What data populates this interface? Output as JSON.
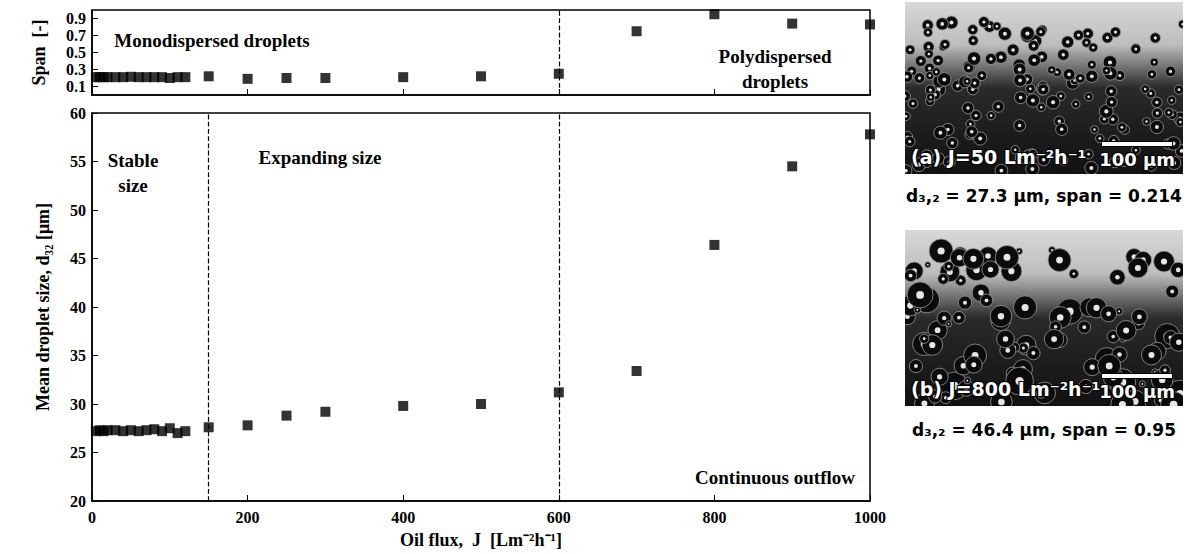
{
  "chart_data": [
    {
      "type": "scatter",
      "y_label": "Span  [-]",
      "x": [
        5,
        10,
        15,
        20,
        30,
        40,
        50,
        60,
        70,
        80,
        90,
        100,
        110,
        120,
        150,
        200,
        250,
        300,
        400,
        500,
        600,
        700,
        800,
        900,
        1000
      ],
      "values": [
        0.21,
        0.21,
        0.21,
        0.21,
        0.21,
        0.21,
        0.214,
        0.21,
        0.21,
        0.21,
        0.21,
        0.2,
        0.21,
        0.21,
        0.22,
        0.19,
        0.2,
        0.2,
        0.21,
        0.22,
        0.25,
        0.75,
        0.95,
        0.84,
        0.83
      ],
      "xlim": [
        0,
        1000
      ],
      "xticks": [
        0,
        200,
        400,
        600,
        800,
        1000
      ],
      "ylim": [
        0,
        1
      ],
      "yticks": [
        0.1,
        0.3,
        0.5,
        0.7,
        0.9
      ],
      "tick_labels": "y",
      "marker": "square",
      "color": "#000000",
      "grid": false,
      "vlines": [
        600
      ],
      "annotations": [
        "Monodispersed droplets",
        "Polydispersed droplets"
      ]
    },
    {
      "type": "scatter",
      "x_label": "Oil flux,  J  [Lm⁻²h⁻¹]",
      "y_label": "Mean droplet size, d₃₂ [μm]",
      "x": [
        5,
        10,
        15,
        20,
        30,
        40,
        50,
        60,
        70,
        80,
        90,
        100,
        110,
        120,
        150,
        200,
        250,
        300,
        400,
        500,
        600,
        700,
        800,
        900,
        1000
      ],
      "values": [
        27.2,
        27.3,
        27.2,
        27.3,
        27.3,
        27.2,
        27.3,
        27.2,
        27.3,
        27.4,
        27.2,
        27.5,
        27.0,
        27.2,
        27.6,
        27.8,
        28.8,
        29.2,
        29.8,
        30.0,
        31.2,
        33.4,
        46.4,
        54.5,
        57.8
      ],
      "xlim": [
        0,
        1000
      ],
      "xticks": [
        0,
        200,
        400,
        600,
        800,
        1000
      ],
      "ylim": [
        20,
        60
      ],
      "yticks": [
        20,
        25,
        30,
        35,
        40,
        45,
        50,
        55,
        60
      ],
      "marker": "square",
      "color": "#000000",
      "grid": false,
      "vlines": [
        150,
        600
      ],
      "annotations": [
        "Stable size",
        "Expanding size",
        "Continuous outflow"
      ]
    }
  ],
  "images": [
    {
      "label": "(a) J=50 Lm⁻²h⁻¹",
      "scale_bar": "100 μm",
      "caption": "d₃,₂ = 27.3 μm, span = 0.214"
    },
    {
      "label": "(b) J=800 Lm⁻²h⁻¹",
      "scale_bar": "100 μm",
      "caption": "d₃,₂ = 46.4 μm, span = 0.95"
    }
  ]
}
